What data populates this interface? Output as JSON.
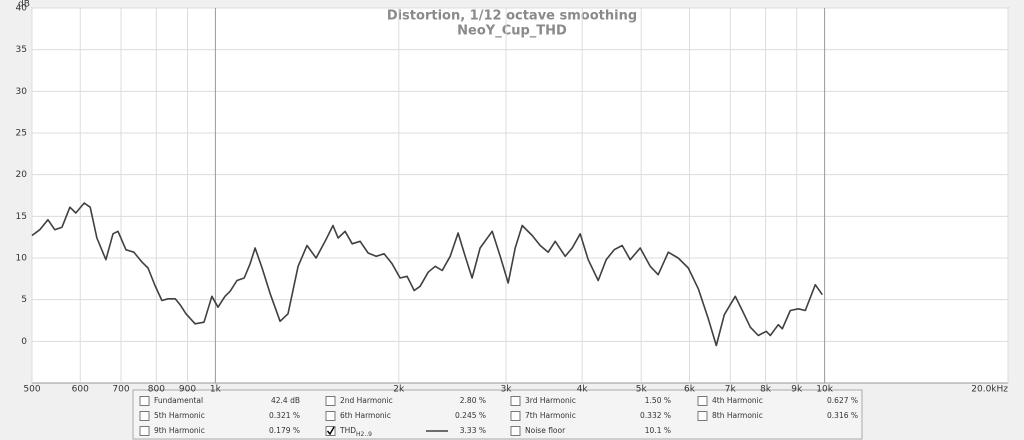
{
  "chart_data": {
    "type": "line",
    "title": "Distortion, 1/12 octave smoothing",
    "subtitle": "NeoY_Cup_THD",
    "y_label": "dB",
    "log_x": true,
    "grid": true,
    "xlim": [
      500,
      20000
    ],
    "ylim": [
      -5,
      40
    ],
    "yticks": [
      0,
      5,
      10,
      15,
      20,
      25,
      30,
      35,
      40
    ],
    "xticks": [
      500,
      600,
      700,
      800,
      900,
      {
        "value": 1000,
        "label": "1k"
      },
      {
        "value": 2000,
        "label": "2k"
      },
      {
        "value": 3000,
        "label": "3k"
      },
      {
        "value": 4000,
        "label": "4k"
      },
      {
        "value": 5000,
        "label": "5k"
      },
      {
        "value": 6000,
        "label": "6k"
      },
      {
        "value": 7000,
        "label": "7k"
      },
      {
        "value": 8000,
        "label": "8k"
      },
      {
        "value": 9000,
        "label": "9k"
      },
      {
        "value": 10000,
        "label": "10k"
      },
      {
        "value": 20000,
        "label": "20.0kHz"
      }
    ],
    "x": [
      500,
      515,
      531,
      545,
      560,
      577,
      590,
      609,
      623,
      639,
      661,
      679,
      692,
      713,
      735,
      758,
      775,
      796,
      817,
      836,
      859,
      875,
      895,
      926,
      958,
      987,
      1010,
      1037,
      1057,
      1085,
      1115,
      1140,
      1162,
      1193,
      1230,
      1277,
      1316,
      1367,
      1414,
      1463,
      1514,
      1560,
      1590,
      1633,
      1677,
      1728,
      1781,
      1836,
      1892,
      1950,
      2010,
      2064,
      2120,
      2168,
      2235,
      2295,
      2357,
      2429,
      2503,
      2571,
      2639,
      2720,
      2847,
      2934,
      3024,
      3105,
      3189,
      3311,
      3413,
      3518,
      3612,
      3751,
      3852,
      3970,
      4092,
      4250,
      4380,
      4515,
      4654,
      4797,
      4981,
      5173,
      5332,
      5538,
      5751,
      5973,
      6203,
      6442,
      6640,
      6844,
      7135,
      7326,
      7551,
      7783,
      8022,
      8144,
      8394,
      8523,
      8784,
      9054,
      9297,
      9655,
      9913
    ],
    "series": [
      {
        "color": "#404040",
        "values": [
          12.7,
          13.4,
          14.6,
          13.4,
          13.7,
          16.1,
          15.4,
          16.6,
          16.1,
          12.4,
          9.8,
          12.9,
          13.2,
          11,
          10.7,
          9.5,
          8.8,
          6.7,
          4.9,
          5.1,
          5.1,
          4.4,
          3.3,
          2.1,
          2.3,
          5.4,
          4.1,
          5.4,
          6,
          7.3,
          7.6,
          9.3,
          11.2,
          8.8,
          5.7,
          2.4,
          3.3,
          9,
          11.5,
          10,
          12,
          13.9,
          12.4,
          13.2,
          11.7,
          12,
          10.6,
          10.2,
          10.5,
          9.3,
          7.6,
          7.8,
          6.1,
          6.6,
          8.3,
          9,
          8.5,
          10.2,
          13,
          10.2,
          7.6,
          11.2,
          13.2,
          10.2,
          7,
          11.2,
          13.9,
          12.7,
          11.5,
          10.7,
          12,
          10.2,
          11.2,
          12.9,
          9.8,
          7.3,
          9.8,
          11,
          11.5,
          9.8,
          11.2,
          9,
          8,
          10.7,
          10,
          8.8,
          6.3,
          2.7,
          -0.5,
          3.2,
          5.4,
          3.7,
          1.7,
          0.7,
          1.2,
          0.7,
          2,
          1.5,
          3.7,
          3.9,
          3.7,
          6.8,
          5.6
        ]
      }
    ],
    "legend": [
      {
        "name": "Fundamental",
        "value": "42.4 dB",
        "color": "#a0522d",
        "checked": false
      },
      {
        "name": "2nd Harmonic",
        "value": "2.80 %",
        "color": "#d42020",
        "checked": false
      },
      {
        "name": "3rd Harmonic",
        "value": "1.50 %",
        "color": "#e08020",
        "checked": false
      },
      {
        "name": "4th Harmonic",
        "value": "0.627 %",
        "color": "#c8b400",
        "checked": false
      },
      {
        "name": "5th Harmonic",
        "value": "0.321 %",
        "color": "#30a030",
        "checked": false
      },
      {
        "name": "6th Harmonic",
        "value": "0.245 %",
        "color": "#4070d0",
        "checked": false
      },
      {
        "name": "7th Harmonic",
        "value": "0.332 %",
        "color": "#d040d0",
        "checked": false
      },
      {
        "name": "8th Harmonic",
        "value": "0.316 %",
        "color": "#808080",
        "checked": false
      },
      {
        "name": "9th Harmonic",
        "value": "0.179 %",
        "color": "#20b0c0",
        "checked": false
      },
      {
        "name": "THD",
        "sub": "H2..9",
        "value": "3.33 %",
        "color": "#404040",
        "checked": true
      },
      {
        "name": "Noise floor",
        "value": "10.1 %",
        "color": "#8b0000",
        "checked": false
      }
    ]
  }
}
